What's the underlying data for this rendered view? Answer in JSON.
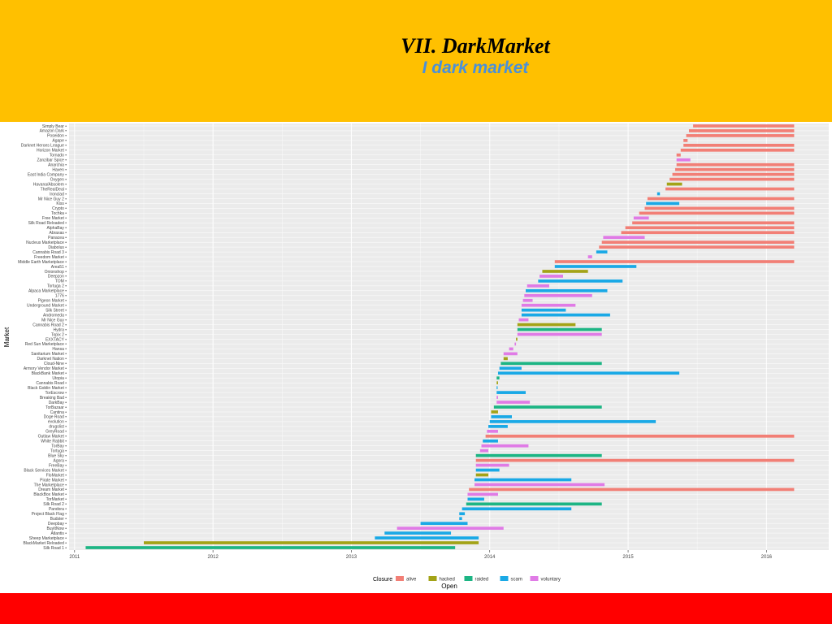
{
  "slide": {
    "title": "VII. DarkMarket",
    "subtitle": "I dark market"
  },
  "colors": {
    "alive": "#f27f76",
    "hacked": "#a3a317",
    "raided": "#1db584",
    "scam": "#1aa9e6",
    "voluntary": "#e07be6",
    "panel": "#ebebeb",
    "band_top": "#ffc000",
    "band_bottom": "#ff0000"
  },
  "chart_data": {
    "type": "bar",
    "orientation": "horizontal",
    "xlabel": "Open",
    "ylabel": "Market",
    "x_ticks": [
      "2011",
      "2012",
      "2013",
      "2014",
      "2015",
      "2016"
    ],
    "xlim": [
      2010.96,
      2016.45
    ],
    "grid": true,
    "legend": {
      "title": "Closure",
      "position": "bottom",
      "entries": [
        "alive",
        "hacked",
        "raided",
        "scam",
        "voluntary"
      ]
    },
    "markets": [
      {
        "name": "Simply Bear",
        "open": 2015.47,
        "close": 2016.2,
        "closure": "alive"
      },
      {
        "name": "Amazon Dark",
        "open": 2015.44,
        "close": 2016.2,
        "closure": "alive"
      },
      {
        "name": "Poseidon",
        "open": 2015.42,
        "close": 2016.2,
        "closure": "alive"
      },
      {
        "name": "Agape",
        "open": 2015.4,
        "close": 2015.43,
        "closure": "alive"
      },
      {
        "name": "Darknet Heroes League",
        "open": 2015.4,
        "close": 2016.2,
        "closure": "alive"
      },
      {
        "name": "Horizon Market",
        "open": 2015.38,
        "close": 2016.2,
        "closure": "alive"
      },
      {
        "name": "Tornado",
        "open": 2015.35,
        "close": 2015.38,
        "closure": "alive"
      },
      {
        "name": "Zanzibar Spice",
        "open": 2015.35,
        "close": 2015.45,
        "closure": "voluntary"
      },
      {
        "name": "Anarchia",
        "open": 2015.35,
        "close": 2016.2,
        "closure": "alive"
      },
      {
        "name": "Haven",
        "open": 2015.34,
        "close": 2016.2,
        "closure": "alive"
      },
      {
        "name": "East India Company",
        "open": 2015.32,
        "close": 2016.2,
        "closure": "alive"
      },
      {
        "name": "Oxygen",
        "open": 2015.3,
        "close": 2016.2,
        "closure": "alive"
      },
      {
        "name": "Havana/Absolem",
        "open": 2015.28,
        "close": 2015.39,
        "closure": "hacked"
      },
      {
        "name": "TheRealDeal",
        "open": 2015.27,
        "close": 2016.2,
        "closure": "alive"
      },
      {
        "name": "Ironclad",
        "open": 2015.21,
        "close": 2015.23,
        "closure": "scam"
      },
      {
        "name": "Mr Nice Guy 2",
        "open": 2015.14,
        "close": 2016.2,
        "closure": "alive"
      },
      {
        "name": "Kiss",
        "open": 2015.13,
        "close": 2015.37,
        "closure": "scam"
      },
      {
        "name": "Crypto",
        "open": 2015.12,
        "close": 2016.2,
        "closure": "alive"
      },
      {
        "name": "Tochka",
        "open": 2015.08,
        "close": 2016.2,
        "closure": "alive"
      },
      {
        "name": "Free Market",
        "open": 2015.04,
        "close": 2015.15,
        "closure": "voluntary"
      },
      {
        "name": "Silk Road Reloaded",
        "open": 2015.03,
        "close": 2016.2,
        "closure": "alive"
      },
      {
        "name": "AlphaBay",
        "open": 2014.98,
        "close": 2016.2,
        "closure": "alive"
      },
      {
        "name": "Abraxas",
        "open": 2014.95,
        "close": 2016.2,
        "closure": "alive"
      },
      {
        "name": "Panacea",
        "open": 2014.82,
        "close": 2015.12,
        "closure": "voluntary"
      },
      {
        "name": "Nucleus Marketplace",
        "open": 2014.81,
        "close": 2016.2,
        "closure": "alive"
      },
      {
        "name": "Diabolus",
        "open": 2014.79,
        "close": 2016.2,
        "closure": "alive"
      },
      {
        "name": "Cannabis Road 3",
        "open": 2014.77,
        "close": 2014.85,
        "closure": "scam"
      },
      {
        "name": "Freedom Market",
        "open": 2014.71,
        "close": 2014.74,
        "closure": "voluntary"
      },
      {
        "name": "Middle Earth Marketplace",
        "open": 2014.47,
        "close": 2016.2,
        "closure": "alive"
      },
      {
        "name": "Area51",
        "open": 2014.47,
        "close": 2015.06,
        "closure": "scam"
      },
      {
        "name": "Onionshop",
        "open": 2014.38,
        "close": 2014.71,
        "closure": "hacked"
      },
      {
        "name": "Deepzon",
        "open": 2014.36,
        "close": 2014.53,
        "closure": "voluntary"
      },
      {
        "name": "TOM",
        "open": 2014.35,
        "close": 2014.96,
        "closure": "scam"
      },
      {
        "name": "Tortuga 2",
        "open": 2014.27,
        "close": 2014.43,
        "closure": "voluntary"
      },
      {
        "name": "Alpaca Marketplace",
        "open": 2014.26,
        "close": 2014.85,
        "closure": "scam"
      },
      {
        "name": "1776",
        "open": 2014.25,
        "close": 2014.74,
        "closure": "voluntary"
      },
      {
        "name": "Pigeon Market",
        "open": 2014.24,
        "close": 2014.31,
        "closure": "voluntary"
      },
      {
        "name": "Underground Market",
        "open": 2014.23,
        "close": 2014.62,
        "closure": "voluntary"
      },
      {
        "name": "Silk Street",
        "open": 2014.23,
        "close": 2014.55,
        "closure": "scam"
      },
      {
        "name": "Andromeda",
        "open": 2014.23,
        "close": 2014.87,
        "closure": "scam"
      },
      {
        "name": "Mr Nice Guy",
        "open": 2014.21,
        "close": 2014.28,
        "closure": "voluntary"
      },
      {
        "name": "Cannabis Road 2",
        "open": 2014.2,
        "close": 2014.62,
        "closure": "hacked"
      },
      {
        "name": "Hydra",
        "open": 2014.2,
        "close": 2014.81,
        "closure": "raided"
      },
      {
        "name": "Topix 2",
        "open": 2014.2,
        "close": 2014.81,
        "closure": "voluntary"
      },
      {
        "name": "EXXTACY",
        "open": 2014.19,
        "close": 2014.2,
        "closure": "hacked"
      },
      {
        "name": "Red Sun Marketplace",
        "open": 2014.18,
        "close": 2014.19,
        "closure": "voluntary"
      },
      {
        "name": "Hansa",
        "open": 2014.14,
        "close": 2014.17,
        "closure": "voluntary"
      },
      {
        "name": "Sanitarium Market",
        "open": 2014.1,
        "close": 2014.2,
        "closure": "voluntary"
      },
      {
        "name": "Darknet Nation",
        "open": 2014.1,
        "close": 2014.13,
        "closure": "hacked"
      },
      {
        "name": "Cloud-Nine",
        "open": 2014.08,
        "close": 2014.81,
        "closure": "raided"
      },
      {
        "name": "Armory Vendor Market",
        "open": 2014.07,
        "close": 2014.23,
        "closure": "scam"
      },
      {
        "name": "BlackBank Market",
        "open": 2014.06,
        "close": 2015.37,
        "closure": "scam"
      },
      {
        "name": "Utopia",
        "open": 2014.05,
        "close": 2014.07,
        "closure": "raided"
      },
      {
        "name": "Cannabis Road",
        "open": 2014.05,
        "close": 2014.06,
        "closure": "hacked"
      },
      {
        "name": "Black Goblin Market",
        "open": 2014.05,
        "close": 2014.055,
        "closure": "scam"
      },
      {
        "name": "TorEscrow",
        "open": 2014.05,
        "close": 2014.26,
        "closure": "scam"
      },
      {
        "name": "Breaking Bad",
        "open": 2014.05,
        "close": 2014.06,
        "closure": "voluntary"
      },
      {
        "name": "DarkBay",
        "open": 2014.05,
        "close": 2014.29,
        "closure": "voluntary"
      },
      {
        "name": "TorBazaar",
        "open": 2014.03,
        "close": 2014.81,
        "closure": "raided"
      },
      {
        "name": "Cantina",
        "open": 2014.01,
        "close": 2014.06,
        "closure": "hacked"
      },
      {
        "name": "Doge Road",
        "open": 2014.01,
        "close": 2014.16,
        "closure": "scam"
      },
      {
        "name": "evolution",
        "open": 2014.0,
        "close": 2015.2,
        "closure": "scam"
      },
      {
        "name": "drugslist",
        "open": 2013.99,
        "close": 2014.13,
        "closure": "scam"
      },
      {
        "name": "GreyRoad",
        "open": 2013.98,
        "close": 2014.06,
        "closure": "voluntary"
      },
      {
        "name": "Outlaw Market",
        "open": 2013.97,
        "close": 2016.2,
        "closure": "alive"
      },
      {
        "name": "White Rabbit",
        "open": 2013.95,
        "close": 2014.06,
        "closure": "scam"
      },
      {
        "name": "TorBay",
        "open": 2013.94,
        "close": 2014.28,
        "closure": "voluntary"
      },
      {
        "name": "Tortuga",
        "open": 2013.93,
        "close": 2013.99,
        "closure": "voluntary"
      },
      {
        "name": "Blue Sky",
        "open": 2013.9,
        "close": 2014.81,
        "closure": "raided"
      },
      {
        "name": "Agora",
        "open": 2013.9,
        "close": 2016.2,
        "closure": "alive"
      },
      {
        "name": "FreeBay",
        "open": 2013.9,
        "close": 2014.14,
        "closure": "voluntary"
      },
      {
        "name": "Black Services Market",
        "open": 2013.9,
        "close": 2014.07,
        "closure": "scam"
      },
      {
        "name": "FloMarket",
        "open": 2013.9,
        "close": 2013.99,
        "closure": "hacked"
      },
      {
        "name": "Pirate Market",
        "open": 2013.89,
        "close": 2014.59,
        "closure": "scam"
      },
      {
        "name": "The Marketplace",
        "open": 2013.89,
        "close": 2014.83,
        "closure": "voluntary"
      },
      {
        "name": "Dream Market",
        "open": 2013.85,
        "close": 2016.2,
        "closure": "alive"
      },
      {
        "name": "BlackBox Market",
        "open": 2013.84,
        "close": 2014.06,
        "closure": "voluntary"
      },
      {
        "name": "TorMarket",
        "open": 2013.84,
        "close": 2013.96,
        "closure": "scam"
      },
      {
        "name": "Silk Road 2",
        "open": 2013.83,
        "close": 2014.81,
        "closure": "raided"
      },
      {
        "name": "Pandora",
        "open": 2013.8,
        "close": 2014.59,
        "closure": "scam"
      },
      {
        "name": "Project Black Flag",
        "open": 2013.78,
        "close": 2013.82,
        "closure": "scam"
      },
      {
        "name": "Budster",
        "open": 2013.78,
        "close": 2013.8,
        "closure": "scam"
      },
      {
        "name": "Deepbay",
        "open": 2013.5,
        "close": 2013.84,
        "closure": "scam"
      },
      {
        "name": "BuyItNow",
        "open": 2013.33,
        "close": 2014.1,
        "closure": "voluntary"
      },
      {
        "name": "Atlantis",
        "open": 2013.24,
        "close": 2013.72,
        "closure": "scam"
      },
      {
        "name": "Sheep Marketplace",
        "open": 2013.17,
        "close": 2013.92,
        "closure": "scam"
      },
      {
        "name": "BlackMarket Reloaded",
        "open": 2011.5,
        "close": 2013.92,
        "closure": "hacked"
      },
      {
        "name": "Silk Road 1",
        "open": 2011.08,
        "close": 2013.75,
        "closure": "raided"
      }
    ]
  }
}
